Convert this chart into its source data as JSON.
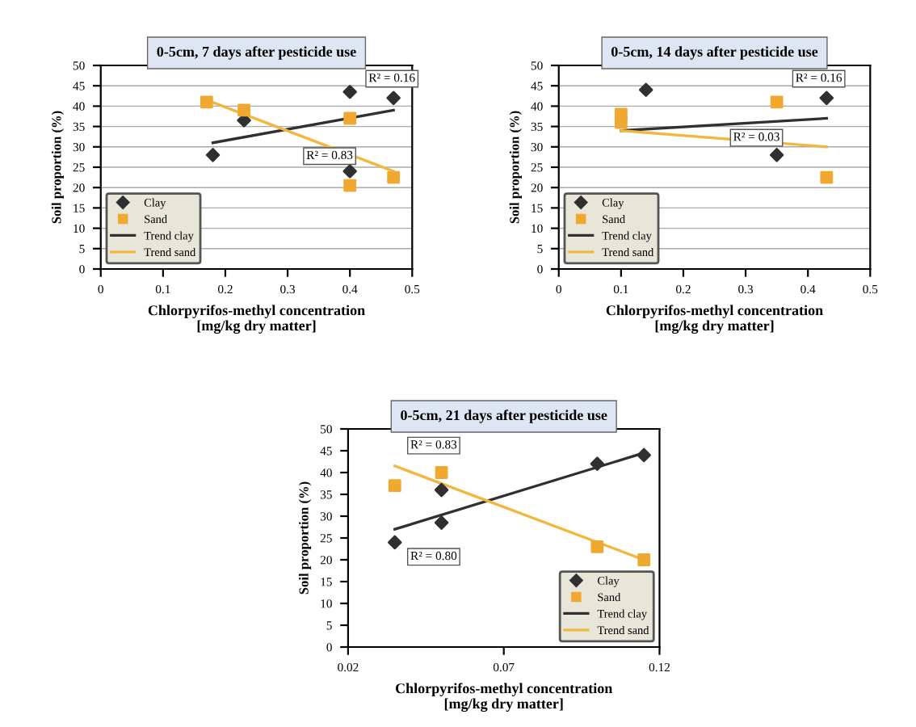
{
  "chart_data": [
    {
      "type": "scatter",
      "title": "0-5cm, 7 days after pesticide use",
      "xlabel": "Chlorpyrifos-methyl concentration\n[mg/kg dry matter]",
      "ylabel": "Soil proportion (%)",
      "xlim": [
        0,
        0.5
      ],
      "xticks": [
        0,
        0.1,
        0.2,
        0.3,
        0.4,
        0.5
      ],
      "ylim": [
        0,
        50
      ],
      "yticks": [
        0,
        5,
        10,
        15,
        20,
        25,
        30,
        35,
        40,
        45,
        50
      ],
      "grid": "y",
      "legend": "bottom left",
      "series": [
        {
          "name": "Clay",
          "marker": "diamond",
          "color": "#303030",
          "x": [
            0.18,
            0.23,
            0.4,
            0.4,
            0.47
          ],
          "values": [
            28,
            36.5,
            43.5,
            24,
            42
          ]
        },
        {
          "name": "Sand",
          "marker": "square",
          "color": "#f0a830",
          "x": [
            0.17,
            0.23,
            0.4,
            0.4,
            0.47
          ],
          "values": [
            41,
            39,
            37,
            20.5,
            22.5
          ]
        },
        {
          "name": "Trend clay",
          "type": "line",
          "color": "#303030",
          "x": [
            0.18,
            0.47
          ],
          "values": [
            31,
            39
          ]
        },
        {
          "name": "Trend sand",
          "type": "line",
          "color": "#f0b840",
          "x": [
            0.17,
            0.47
          ],
          "values": [
            41.5,
            24
          ]
        }
      ],
      "annotations": [
        "R² = 0.16",
        "R² = 0.83"
      ]
    },
    {
      "type": "scatter",
      "title": "0-5cm, 14 days after pesticide use",
      "xlabel": "Chlorpyrifos-methyl concentration\n[mg/kg dry matter]",
      "ylabel": "Soil proportion (%)",
      "xlim": [
        0,
        0.5
      ],
      "xticks": [
        0,
        0.1,
        0.2,
        0.3,
        0.4,
        0.5
      ],
      "ylim": [
        0,
        50
      ],
      "yticks": [
        0,
        5,
        10,
        15,
        20,
        25,
        30,
        35,
        40,
        45,
        50
      ],
      "grid": "y",
      "legend": "bottom left",
      "series": [
        {
          "name": "Clay",
          "marker": "diamond",
          "color": "#303030",
          "x": [
            0.14,
            0.35,
            0.43
          ],
          "values": [
            44,
            28,
            42
          ]
        },
        {
          "name": "Sand",
          "marker": "square",
          "color": "#f0a830",
          "x": [
            0.1,
            0.1,
            0.35,
            0.43
          ],
          "values": [
            38,
            36,
            41,
            22.5
          ]
        },
        {
          "name": "Trend clay",
          "type": "line",
          "color": "#303030",
          "x": [
            0.1,
            0.43
          ],
          "values": [
            34,
            37
          ]
        },
        {
          "name": "Trend sand",
          "type": "line",
          "color": "#f0b840",
          "x": [
            0.1,
            0.43
          ],
          "values": [
            34,
            30
          ]
        }
      ],
      "annotations": [
        "R² = 0.16",
        "R² = 0.03"
      ]
    },
    {
      "type": "scatter",
      "title": "0-5cm, 21 days after pesticide use",
      "xlabel": "Chlorpyrifos-methyl concentration\n[mg/kg dry matter]",
      "ylabel": "Soil proportion (%)",
      "xlim": [
        0.02,
        0.12
      ],
      "xticks": [
        0.02,
        0.07,
        0.12
      ],
      "ylim": [
        0,
        50
      ],
      "yticks": [
        0,
        5,
        10,
        15,
        20,
        25,
        30,
        35,
        40,
        45,
        50
      ],
      "grid": false,
      "legend": "bottom right",
      "series": [
        {
          "name": "Clay",
          "marker": "diamond",
          "color": "#303030",
          "x": [
            0.035,
            0.05,
            0.05,
            0.1,
            0.115
          ],
          "values": [
            24,
            36,
            28.5,
            42,
            44
          ]
        },
        {
          "name": "Sand",
          "marker": "square",
          "color": "#f0a830",
          "x": [
            0.035,
            0.05,
            0.1,
            0.115
          ],
          "values": [
            37,
            40,
            23,
            20
          ]
        },
        {
          "name": "Trend clay",
          "type": "line",
          "color": "#303030",
          "x": [
            0.035,
            0.115
          ],
          "values": [
            27,
            44.5
          ]
        },
        {
          "name": "Trend sand",
          "type": "line",
          "color": "#f0b840",
          "x": [
            0.035,
            0.115
          ],
          "values": [
            41.5,
            20
          ]
        }
      ],
      "annotations": [
        "R² = 0.83",
        "R² = 0.80"
      ]
    }
  ]
}
